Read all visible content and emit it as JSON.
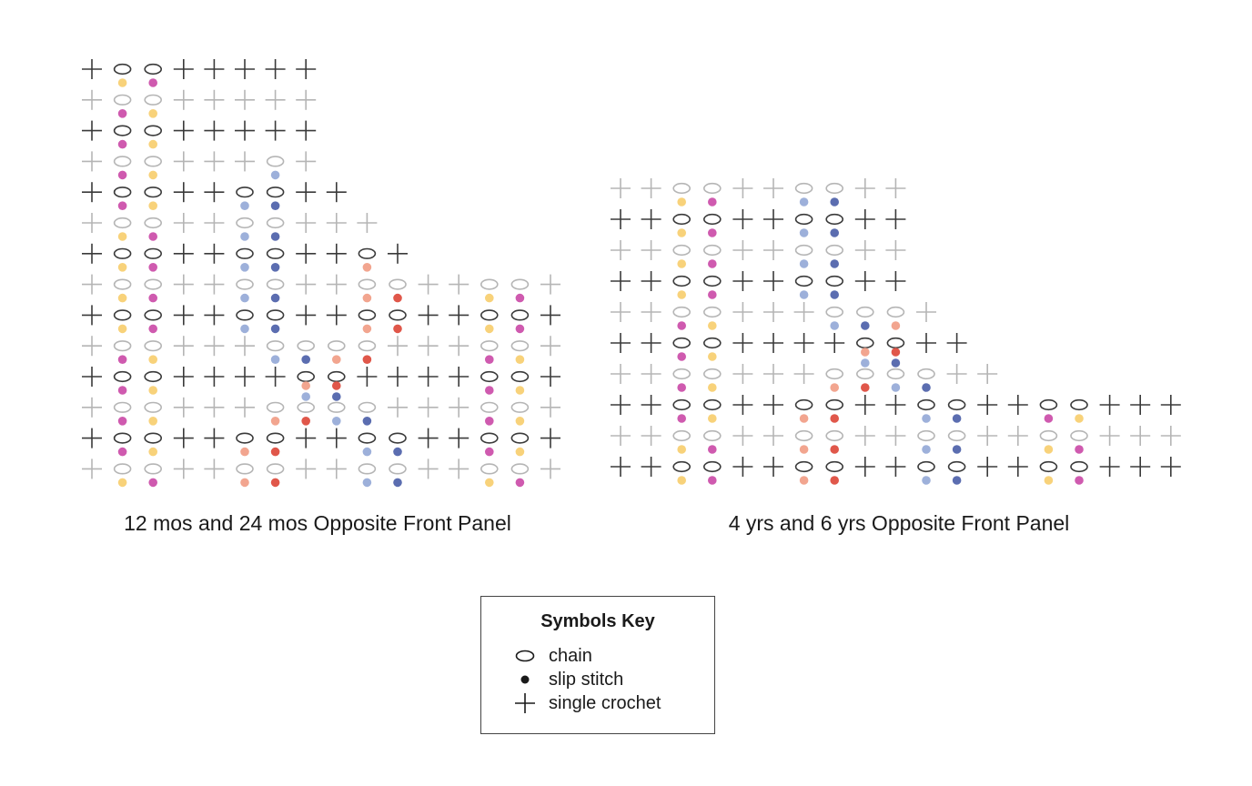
{
  "colors": {
    "dark": "#3a3a3a",
    "light": "#b5b5b5",
    "yellow": "#f8d27a",
    "magenta": "#cf5aaf",
    "light_blue": "#9db0da",
    "dark_blue": "#5b6db0",
    "salmon": "#f2a58f",
    "red": "#e0574a"
  },
  "diagrams": [
    {
      "caption": "12 mos and 24 mos Opposite Front Panel",
      "rows": [
        {
          "shade": "dark",
          "stitches": "XOOXXXXX",
          "dots": [
            null,
            "yellow",
            "magenta"
          ]
        },
        {
          "shade": "light",
          "stitches": "XOOXXXXX",
          "dots": [
            null,
            "magenta",
            "yellow"
          ]
        },
        {
          "shade": "dark",
          "stitches": "XOOXXXXX",
          "dots": [
            null,
            "magenta",
            "yellow"
          ]
        },
        {
          "shade": "light",
          "stitches": "XOOXXXOX",
          "dots": [
            null,
            "magenta",
            "yellow",
            null,
            null,
            null,
            "light_blue"
          ]
        },
        {
          "shade": "dark",
          "stitches": "XOOXXOOXX",
          "dots": [
            null,
            "magenta",
            "yellow",
            null,
            null,
            "light_blue",
            "dark_blue"
          ]
        },
        {
          "shade": "light",
          "stitches": "XOOXXOOXXX",
          "dots": [
            null,
            "yellow",
            "magenta",
            null,
            null,
            "light_blue",
            "dark_blue"
          ]
        },
        {
          "shade": "dark",
          "stitches": "XOOXXOOXXOX",
          "dots": [
            null,
            "yellow",
            "magenta",
            null,
            null,
            "light_blue",
            "dark_blue",
            null,
            null,
            "salmon"
          ]
        },
        {
          "shade": "light",
          "stitches": "XOOXXOOXXOOXXOOX",
          "dots": [
            null,
            "yellow",
            "magenta",
            null,
            null,
            "light_blue",
            "dark_blue",
            null,
            null,
            "salmon",
            "red",
            null,
            null,
            "yellow",
            "magenta"
          ]
        },
        {
          "shade": "dark",
          "stitches": "XOOXXOOXXOOXXOOX",
          "dots": [
            null,
            "yellow",
            "magenta",
            null,
            null,
            "light_blue",
            "dark_blue",
            null,
            null,
            "salmon",
            "red",
            null,
            null,
            "yellow",
            "magenta"
          ]
        },
        {
          "shade": "light",
          "stitches": "XOOXXXOOOOXXXOOX",
          "dots": [
            null,
            "magenta",
            "yellow",
            null,
            null,
            null,
            "light_blue",
            "dark_blue",
            "salmon",
            "red",
            null,
            null,
            null,
            "magenta",
            "yellow"
          ]
        },
        {
          "shade": "dark",
          "stitches": "XOOXXXXOOXXXXOOX",
          "dots": [
            null,
            "magenta",
            "yellow",
            null,
            null,
            null,
            null,
            [
              "salmon",
              "light_blue"
            ],
            [
              "red",
              "dark_blue"
            ],
            null,
            null,
            null,
            null,
            "magenta",
            "yellow"
          ]
        },
        {
          "shade": "light",
          "stitches": "XOOXXXOOOOXXXOOX",
          "dots": [
            null,
            "magenta",
            "yellow",
            null,
            null,
            null,
            "salmon",
            "red",
            "light_blue",
            "dark_blue",
            null,
            null,
            null,
            "magenta",
            "yellow"
          ]
        },
        {
          "shade": "dark",
          "stitches": "XOOXXOOXXOOXXOOX",
          "dots": [
            null,
            "magenta",
            "yellow",
            null,
            null,
            "salmon",
            "red",
            null,
            null,
            "light_blue",
            "dark_blue",
            null,
            null,
            "magenta",
            "yellow"
          ]
        },
        {
          "shade": "light",
          "stitches": "XOOXXOOXXOOXXOOX",
          "dots": [
            null,
            "yellow",
            "magenta",
            null,
            null,
            "salmon",
            "red",
            null,
            null,
            "light_blue",
            "dark_blue",
            null,
            null,
            "yellow",
            "magenta"
          ]
        }
      ]
    },
    {
      "caption": "4 yrs and 6 yrs Opposite Front Panel",
      "rows": [
        {
          "shade": "light",
          "stitches": "XXOOXXOOXX",
          "dots": [
            null,
            null,
            "yellow",
            "magenta",
            null,
            null,
            "light_blue",
            "dark_blue"
          ]
        },
        {
          "shade": "dark",
          "stitches": "XXOOXXOOXX",
          "dots": [
            null,
            null,
            "yellow",
            "magenta",
            null,
            null,
            "light_blue",
            "dark_blue"
          ]
        },
        {
          "shade": "light",
          "stitches": "XXOOXXOOXX",
          "dots": [
            null,
            null,
            "yellow",
            "magenta",
            null,
            null,
            "light_blue",
            "dark_blue"
          ]
        },
        {
          "shade": "dark",
          "stitches": "XXOOXXOOXX",
          "dots": [
            null,
            null,
            "yellow",
            "magenta",
            null,
            null,
            "light_blue",
            "dark_blue"
          ]
        },
        {
          "shade": "light",
          "stitches": "XXOOXXXOOOX",
          "dots": [
            null,
            null,
            "magenta",
            "yellow",
            null,
            null,
            null,
            "light_blue",
            "dark_blue",
            "salmon"
          ]
        },
        {
          "shade": "dark",
          "stitches": "XXOOXXXXOOXX",
          "dots": [
            null,
            null,
            "magenta",
            "yellow",
            null,
            null,
            null,
            null,
            [
              "salmon",
              "light_blue"
            ],
            [
              "red",
              "dark_blue"
            ]
          ]
        },
        {
          "shade": "light",
          "stitches": "XXOOXXXOOOOXX",
          "dots": [
            null,
            null,
            "magenta",
            "yellow",
            null,
            null,
            null,
            "salmon",
            "red",
            "light_blue",
            "dark_blue"
          ]
        },
        {
          "shade": "dark",
          "stitches": "XXOOXXOOXXOOXXOOXXX",
          "dots": [
            null,
            null,
            "magenta",
            "yellow",
            null,
            null,
            "salmon",
            "red",
            null,
            null,
            "light_blue",
            "dark_blue",
            null,
            null,
            "magenta",
            "yellow"
          ]
        },
        {
          "shade": "light",
          "stitches": "XXOOXXOOXXOOXXOOXXX",
          "dots": [
            null,
            null,
            "yellow",
            "magenta",
            null,
            null,
            "salmon",
            "red",
            null,
            null,
            "light_blue",
            "dark_blue",
            null,
            null,
            "yellow",
            "magenta"
          ]
        },
        {
          "shade": "dark",
          "stitches": "XXOOXXOOXXOOXXOOXXX",
          "dots": [
            null,
            null,
            "yellow",
            "magenta",
            null,
            null,
            "salmon",
            "red",
            null,
            null,
            "light_blue",
            "dark_blue",
            null,
            null,
            "yellow",
            "magenta"
          ]
        }
      ]
    }
  ],
  "key": {
    "title": "Symbols Key",
    "items": [
      {
        "symbol": "chain-icon",
        "label": "chain"
      },
      {
        "symbol": "slip-stitch-icon",
        "label": "slip stitch"
      },
      {
        "symbol": "single-crochet-icon",
        "label": "single crochet"
      }
    ]
  }
}
